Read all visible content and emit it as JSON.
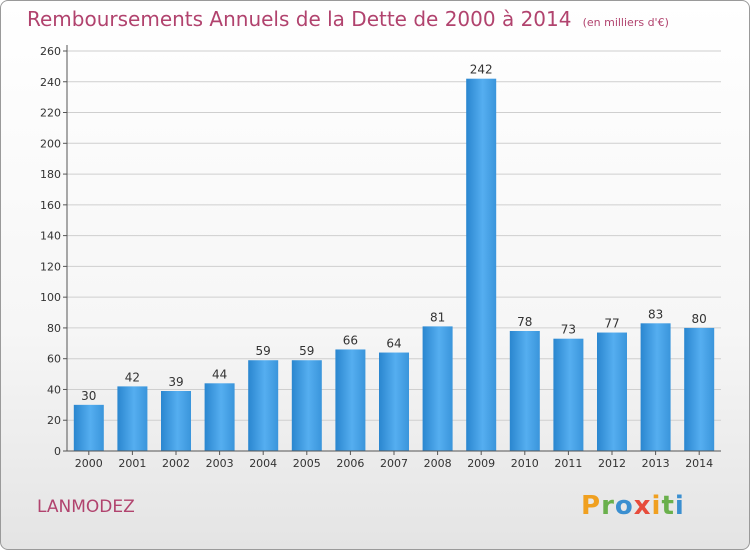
{
  "header": {
    "title": "Remboursements Annuels de la Dette de 2000 à 2014",
    "unit": "(en milliers d'€)"
  },
  "footer": {
    "town": "LANMODEZ",
    "logo": [
      "P",
      "r",
      "o",
      "x",
      "i",
      "t",
      "i"
    ],
    "logo_colors": [
      "#f0a020",
      "#6ab04c",
      "#3b8fd0",
      "#e74c3c",
      "#f0a020",
      "#6ab04c",
      "#3b8fd0"
    ]
  },
  "chart_data": {
    "type": "bar",
    "title": "Remboursements Annuels de la Dette de 2000 à 2014",
    "categories": [
      "2000",
      "2001",
      "2002",
      "2003",
      "2004",
      "2005",
      "2006",
      "2007",
      "2008",
      "2009",
      "2010",
      "2011",
      "2012",
      "2013",
      "2014"
    ],
    "values": [
      30,
      42,
      39,
      44,
      59,
      59,
      66,
      64,
      81,
      242,
      78,
      73,
      77,
      83,
      80
    ],
    "ylim": [
      0,
      260
    ],
    "yticks": [
      0,
      20,
      40,
      60,
      80,
      100,
      120,
      140,
      160,
      180,
      200,
      220,
      240,
      260
    ],
    "grid": true,
    "bar_color": "#3d98dc",
    "grid_color": "#cfcfcf"
  }
}
